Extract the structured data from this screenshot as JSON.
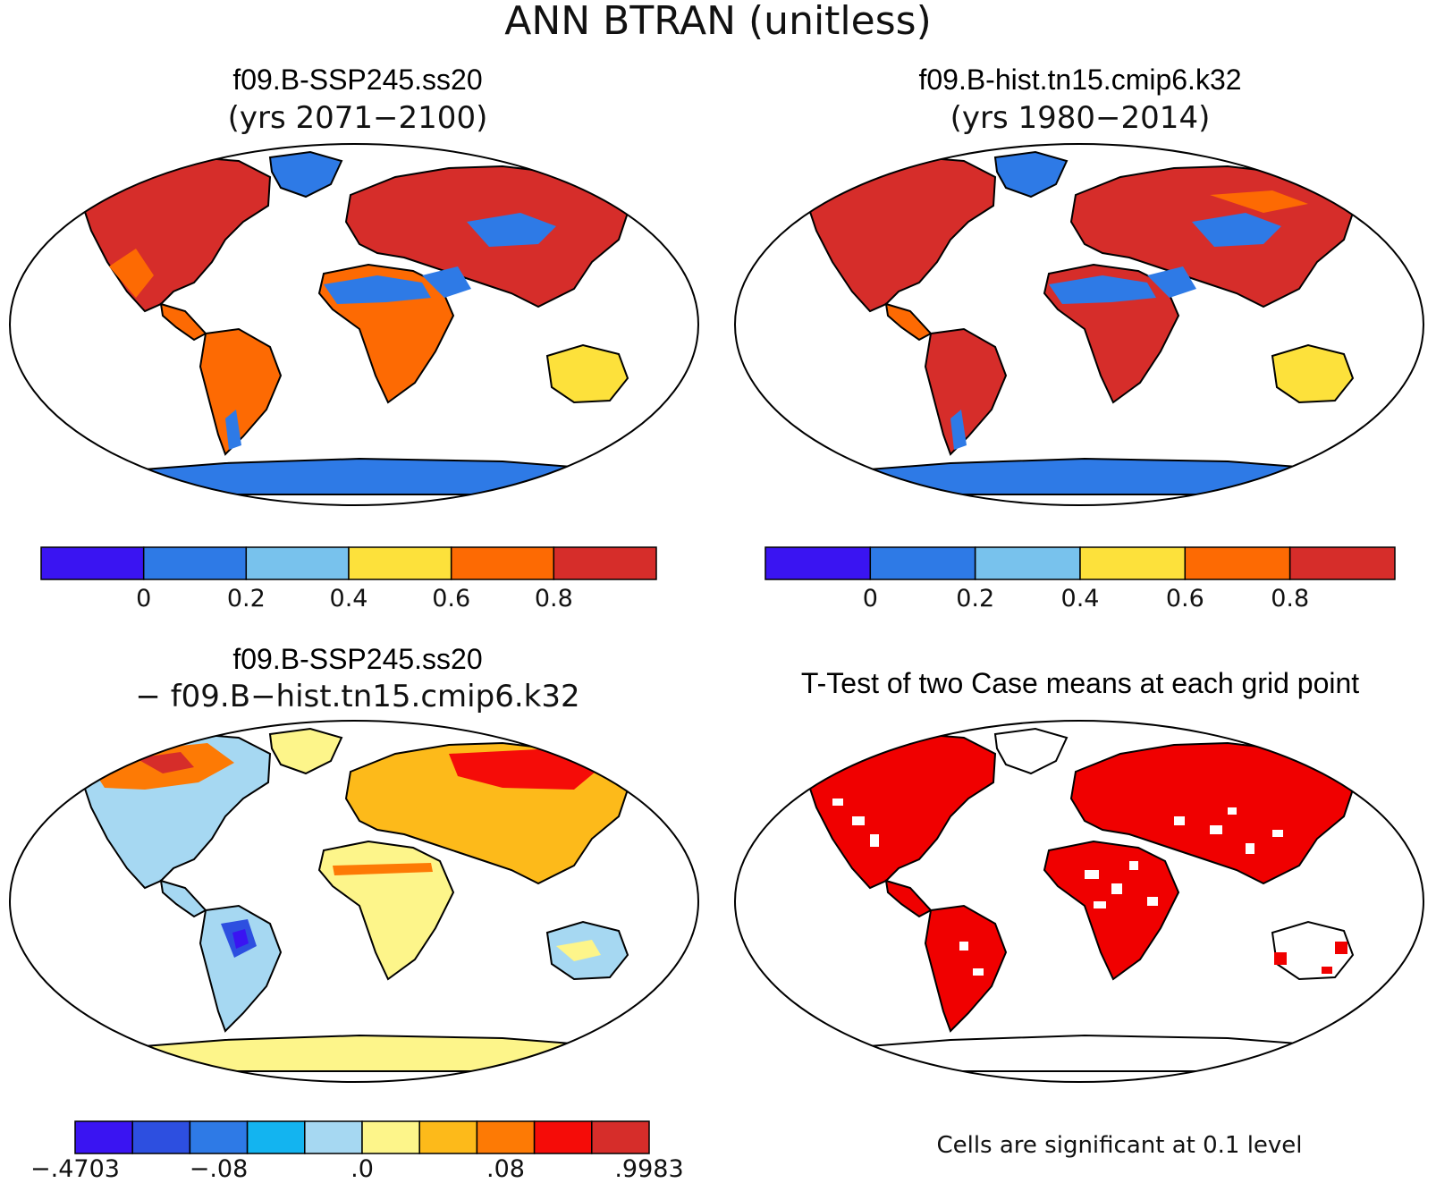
{
  "figure_title": "ANN BTRAN (unitless)",
  "panels": [
    {
      "id": "case1",
      "title": "f09.B-SSP245.ss20",
      "subtitle": "(yrs 2071−2100)",
      "colorbar": {
        "colors": [
          "#3a14f2",
          "#2e7ae6",
          "#78c2ed",
          "#fde13b",
          "#fd6a03",
          "#d62d2a"
        ],
        "ticks": [
          "0",
          "0.2",
          "0.4",
          "0.6",
          "0.8"
        ]
      }
    },
    {
      "id": "case2",
      "title": "f09.B-hist.tn15.cmip6.k32",
      "subtitle": "(yrs 1980−2014)",
      "colorbar": {
        "colors": [
          "#3a14f2",
          "#2e7ae6",
          "#78c2ed",
          "#fde13b",
          "#fd6a03",
          "#d62d2a"
        ],
        "ticks": [
          "0",
          "0.2",
          "0.4",
          "0.6",
          "0.8"
        ]
      }
    },
    {
      "id": "diff",
      "title": "f09.B-SSP245.ss20",
      "subtitle": "− f09.B−hist.tn15.cmip6.k32",
      "colorbar": {
        "colors": [
          "#3a14f2",
          "#2d4fe0",
          "#2e7ae6",
          "#13b4f0",
          "#a6d8f2",
          "#fdf58a",
          "#fdba1a",
          "#fd7a05",
          "#f50c08",
          "#d62d2a"
        ],
        "ticks": [
          "−.4703",
          "−.08",
          ".0",
          ".08",
          ".9983"
        ]
      }
    },
    {
      "id": "ttest",
      "title": "T-Test of two Case means at each grid point",
      "note": "Cells are significant at 0.1 level",
      "color": "#f00000"
    }
  ],
  "colors": {
    "ocean": "#ffffff",
    "outline": "#000000",
    "sig": "#f00000"
  }
}
